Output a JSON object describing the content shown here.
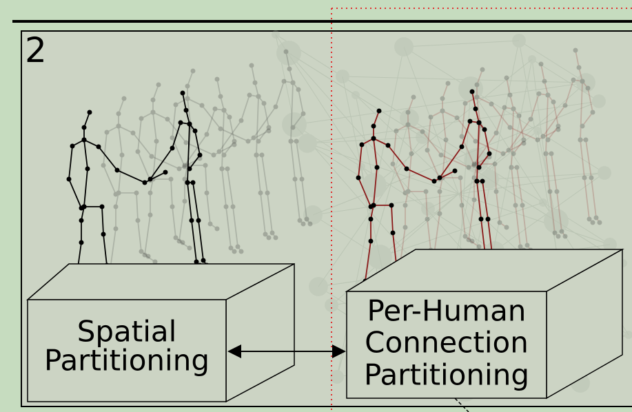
{
  "panel_number": "2",
  "boxes": [
    {
      "lines": [
        "Spatial",
        "Partitioning"
      ]
    },
    {
      "lines": [
        "Per-Human",
        "Connection",
        "Partitioning"
      ]
    }
  ]
}
